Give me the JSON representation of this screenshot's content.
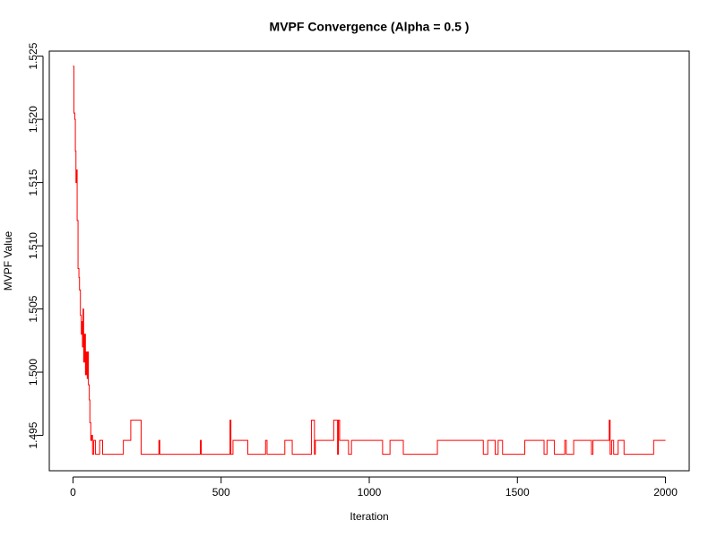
{
  "chart_data": {
    "type": "line",
    "title": "MVPF Convergence (Alpha = 0.5 )",
    "x_label": "Iteration",
    "y_label": "MVPF Value",
    "drawstyle": "steps-post",
    "xlim": [
      -80,
      2080
    ],
    "xticks": [
      0,
      500,
      1000,
      1500,
      2000
    ],
    "ylim": [
      1.4922,
      1.5254
    ],
    "yticks": [
      1.495,
      {
        "value": 1.5,
        "label": "1.500"
      },
      1.505,
      {
        "value": 1.51,
        "label": "1.510"
      },
      1.515,
      {
        "value": 1.52,
        "label": "1.520"
      },
      1.525
    ],
    "series": [
      {
        "color": "#ff0000",
        "x": [
          0,
          3,
          6,
          8,
          10,
          12,
          14,
          17,
          20,
          22,
          25,
          28,
          30,
          32,
          34,
          36,
          39,
          42,
          45,
          48,
          50,
          52,
          55,
          57,
          60,
          63,
          66,
          70,
          76,
          90,
          100,
          170,
          195,
          230,
          290,
          293,
          430,
          433,
          530,
          533,
          540,
          590,
          650,
          655,
          715,
          740,
          805,
          815,
          818,
          880,
          893,
          896,
          900,
          930,
          940,
          1045,
          1070,
          1115,
          1230,
          1385,
          1400,
          1425,
          1435,
          1450,
          1525,
          1590,
          1600,
          1625,
          1660,
          1665,
          1690,
          1750,
          1755,
          1810,
          1813,
          1818,
          1825,
          1840,
          1860,
          1960,
          2000
        ],
        "values": [
          1.5242,
          1.5205,
          1.52,
          1.5175,
          1.515,
          1.516,
          1.512,
          1.5082,
          1.5075,
          1.5065,
          1.5045,
          1.503,
          1.504,
          1.502,
          1.505,
          1.5008,
          1.503,
          1.4998,
          1.5016,
          1.4995,
          1.5016,
          1.499,
          1.4978,
          1.496,
          1.4946,
          1.495,
          1.4935,
          1.4946,
          1.4935,
          1.4946,
          1.4935,
          1.4946,
          1.4962,
          1.4935,
          1.4946,
          1.4935,
          1.4946,
          1.4935,
          1.4962,
          1.4935,
          1.4946,
          1.4935,
          1.4946,
          1.4935,
          1.4946,
          1.4935,
          1.4962,
          1.4935,
          1.4946,
          1.4962,
          1.4935,
          1.4962,
          1.4946,
          1.4935,
          1.4946,
          1.4935,
          1.4946,
          1.4935,
          1.4946,
          1.4935,
          1.4946,
          1.4935,
          1.4946,
          1.4935,
          1.4946,
          1.4935,
          1.4946,
          1.4935,
          1.4946,
          1.4935,
          1.4946,
          1.4935,
          1.4946,
          1.4962,
          1.4935,
          1.4946,
          1.4935,
          1.4946,
          1.4935,
          1.4946,
          1.4946
        ]
      }
    ]
  }
}
